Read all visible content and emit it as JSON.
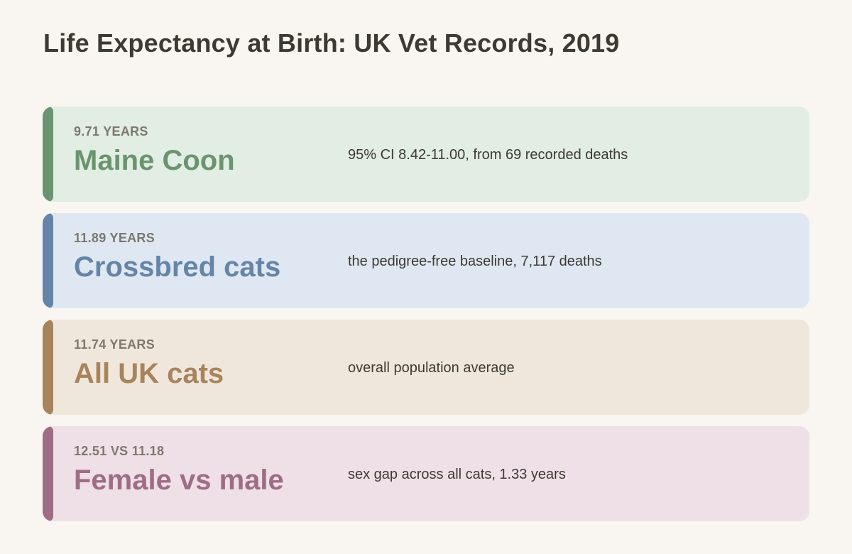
{
  "title": "Life Expectancy at Birth: UK Vet Records, 2019",
  "cards": [
    {
      "stat": "9.71 years",
      "label": "Maine Coon",
      "description": "95% CI 8.42-11.00, from 69 recorded deaths",
      "accent_color": "#6a9470",
      "background_color": "#e2ede3"
    },
    {
      "stat": "11.89 years",
      "label": "Crossbred cats",
      "description": "the pedigree-free baseline, 7,117 deaths",
      "accent_color": "#6485a7",
      "background_color": "#dfe8f2"
    },
    {
      "stat": "11.74 years",
      "label": "All UK cats",
      "description": "overall population average",
      "accent_color": "#a8845c",
      "background_color": "#f0e7dc"
    },
    {
      "stat": "12.51 vs 11.18",
      "label": "Female vs male",
      "description": "sex gap across all cats, 1.33 years",
      "accent_color": "#9e6d85",
      "background_color": "#efe0e7"
    }
  ]
}
